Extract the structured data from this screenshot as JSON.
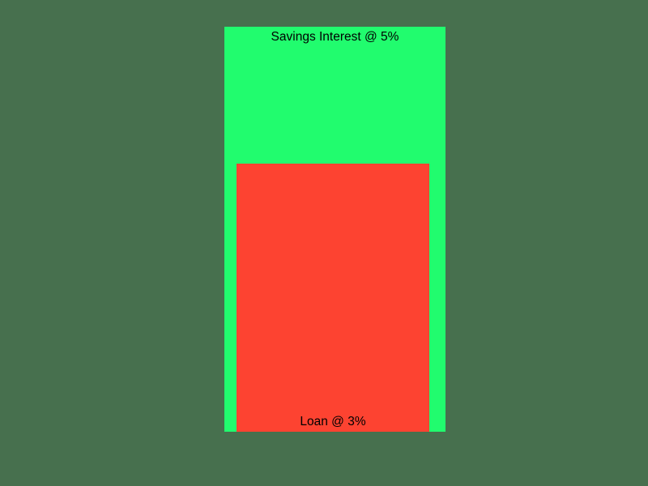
{
  "slide": {
    "background_color": "#47704e",
    "text_color": "#000000",
    "savings_block": {
      "label": "Savings Interest @ 5%",
      "color": "#21fc6e"
    },
    "loan_block": {
      "label": "Loan @ 3%",
      "color": "#fd4331"
    }
  }
}
